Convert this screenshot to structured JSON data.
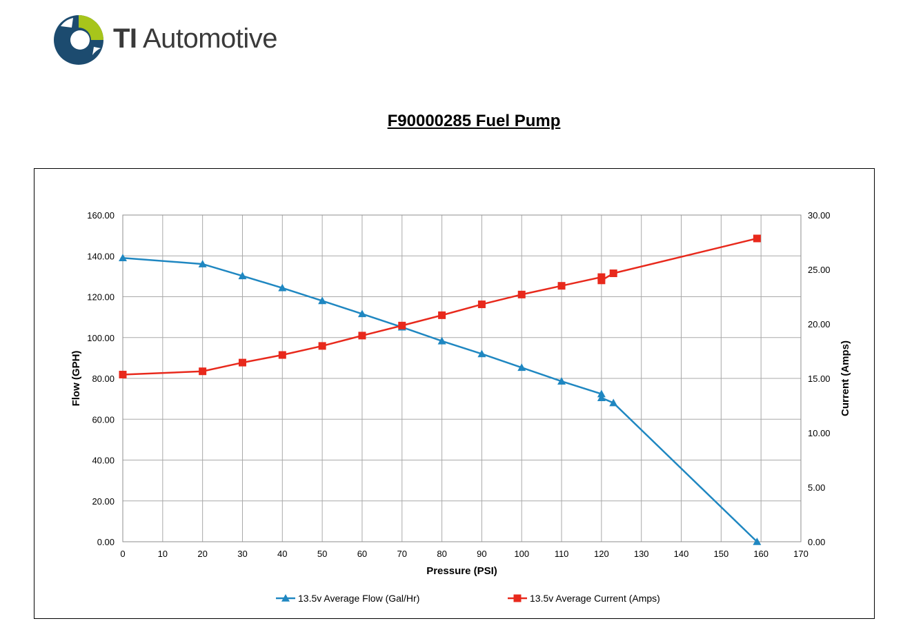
{
  "brand": {
    "logo_icon": "ti-automotive-logo-icon",
    "name_bold": "TI",
    "name_rest": " Automotive",
    "colors": {
      "navy": "#1c4b6f",
      "lime": "#a7c51b"
    }
  },
  "chart_data": {
    "type": "line",
    "title": "F90000285 Fuel Pump",
    "xlabel": "Pressure (PSI)",
    "ylabel": "Flow (GPH)",
    "y2label": "Current (Amps)",
    "xlim": [
      0,
      170
    ],
    "ylim": [
      0,
      160
    ],
    "y2lim": [
      0,
      30
    ],
    "x_ticks": [
      "0",
      "10",
      "20",
      "30",
      "40",
      "50",
      "60",
      "70",
      "80",
      "90",
      "100",
      "110",
      "120",
      "130",
      "140",
      "150",
      "160",
      "170"
    ],
    "y_ticks": [
      "0.00",
      "20.00",
      "40.00",
      "60.00",
      "80.00",
      "100.00",
      "120.00",
      "140.00",
      "160.00"
    ],
    "y2_ticks": [
      "0.00",
      "5.00",
      "10.00",
      "15.00",
      "20.00",
      "25.00",
      "30.00"
    ],
    "grid": true,
    "legend": "bottom",
    "series": [
      {
        "name": "13.5v Average Flow (Gal/Hr)",
        "axis": "left",
        "color": "#1f87c1",
        "marker": "triangle",
        "x": [
          0,
          20,
          30,
          40,
          50,
          60,
          70,
          80,
          90,
          100,
          110,
          120,
          120,
          123,
          159
        ],
        "y": [
          139,
          136,
          130.2,
          124.3,
          118,
          111.6,
          105.1,
          98.3,
          92,
          85.3,
          78.6,
          72.4,
          70.5,
          68,
          0
        ]
      },
      {
        "name": "13.5v Average Current (Amps)",
        "axis": "right",
        "color": "#e8291c",
        "marker": "square",
        "x": [
          0,
          20,
          30,
          40,
          50,
          60,
          70,
          80,
          90,
          100,
          110,
          120,
          120,
          123,
          159
        ],
        "y": [
          15.35,
          15.65,
          16.45,
          17.15,
          17.98,
          18.93,
          19.85,
          20.8,
          21.8,
          22.7,
          23.5,
          24.3,
          24.0,
          24.65,
          27.85
        ]
      }
    ]
  }
}
